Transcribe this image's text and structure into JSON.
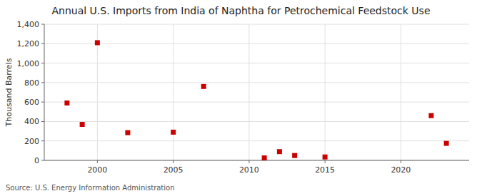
{
  "chart_data": {
    "type": "scatter",
    "title": "Annual U.S. Imports from India of Naphtha for Petrochemical Feedstock Use",
    "ylabel": "Thousand Barrels",
    "annotation": "Source: U.S. Energy Information Administration",
    "x": [
      1998,
      1999,
      2000,
      2002,
      2005,
      2007,
      2011,
      2012,
      2013,
      2015,
      2022,
      2023
    ],
    "values": [
      590,
      370,
      1210,
      285,
      290,
      760,
      25,
      90,
      50,
      35,
      460,
      175
    ],
    "color": "#cc0000",
    "marker": "square",
    "grid": true,
    "xlim": [
      1996.5,
      2024.5
    ],
    "ylim": [
      0,
      1400
    ],
    "xticks": [
      2000,
      2005,
      2010,
      2015,
      2020
    ],
    "yticks": [
      0,
      200,
      400,
      600,
      800,
      {
        "value": 1000,
        "label": "1,000"
      },
      {
        "value": 1200,
        "label": "1,200"
      },
      {
        "value": 1400,
        "label": "1,400"
      }
    ]
  }
}
